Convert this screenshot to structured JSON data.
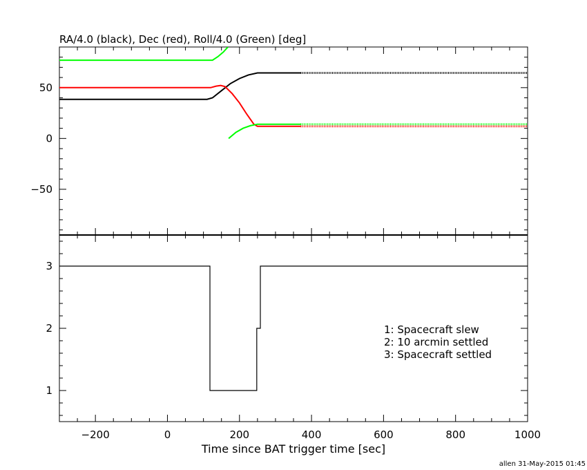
{
  "footer": {
    "credit": "allen 31-May-2015 01:45"
  },
  "chart_data": [
    {
      "type": "line",
      "title": "RA/4.0 (black), Dec (red), Roll/4.0 (Green) [deg]",
      "xlim": [
        -300,
        1000
      ],
      "ylim": [
        -95,
        90
      ],
      "yticks": [
        -50,
        0,
        50
      ],
      "ytick_labels": [
        "−50",
        "0",
        "50"
      ],
      "series": [
        {
          "color": "#000000",
          "solid": [
            [
              -300,
              38.5
            ],
            [
              110,
              38.5
            ],
            [
              125,
              40
            ],
            [
              150,
              47
            ],
            [
              175,
              54
            ],
            [
              200,
              59
            ],
            [
              225,
              62.5
            ],
            [
              250,
              64.5
            ],
            [
              370,
              64.5
            ]
          ],
          "dotted": [
            [
              370,
              64.5
            ],
            [
              1000,
              64.5
            ]
          ]
        },
        {
          "color": "#ff0000",
          "solid": [
            [
              -300,
              50
            ],
            [
              120,
              50
            ],
            [
              135,
              51.5
            ],
            [
              148,
              52.2
            ],
            [
              160,
              51
            ],
            [
              180,
              44
            ],
            [
              200,
              35
            ],
            [
              220,
              24
            ],
            [
              240,
              14
            ],
            [
              250,
              12
            ],
            [
              370,
              12
            ]
          ],
          "dotted": [
            [
              370,
              12
            ],
            [
              1000,
              12
            ]
          ]
        },
        {
          "color": "#00ff00",
          "solid": [
            [
              -300,
              77
            ],
            [
              125,
              77
            ],
            [
              140,
              80.5
            ],
            [
              155,
              85
            ],
            [
              168,
              90
            ]
          ],
          "solid2": [
            [
              170,
              0
            ],
            [
              190,
              6
            ],
            [
              210,
              10
            ],
            [
              230,
              12.5
            ],
            [
              250,
              14
            ],
            [
              370,
              14
            ]
          ],
          "dotted": [
            [
              370,
              14
            ],
            [
              1000,
              14
            ]
          ]
        }
      ]
    },
    {
      "type": "line",
      "xlabel": "Time since BAT trigger time [sec]",
      "xlim": [
        -300,
        1000
      ],
      "ylim": [
        0.5,
        3.5
      ],
      "xticks": [
        -200,
        0,
        200,
        400,
        600,
        800,
        1000
      ],
      "xtick_labels": [
        "−200",
        "0",
        "200",
        "400",
        "600",
        "800",
        "1000"
      ],
      "yticks": [
        1,
        2,
        3
      ],
      "ytick_labels": [
        "1",
        "2",
        "3"
      ],
      "legend": [
        "1: Spacecraft slew",
        "2: 10 arcmin settled",
        "3: Spacecraft settled"
      ],
      "series": [
        {
          "color": "#000000",
          "step": [
            [
              -300,
              3
            ],
            [
              118,
              3
            ],
            [
              118,
              1
            ],
            [
              248,
              1
            ],
            [
              248,
              2
            ],
            [
              258,
              2
            ],
            [
              258,
              3
            ],
            [
              1000,
              3
            ]
          ]
        }
      ]
    }
  ]
}
